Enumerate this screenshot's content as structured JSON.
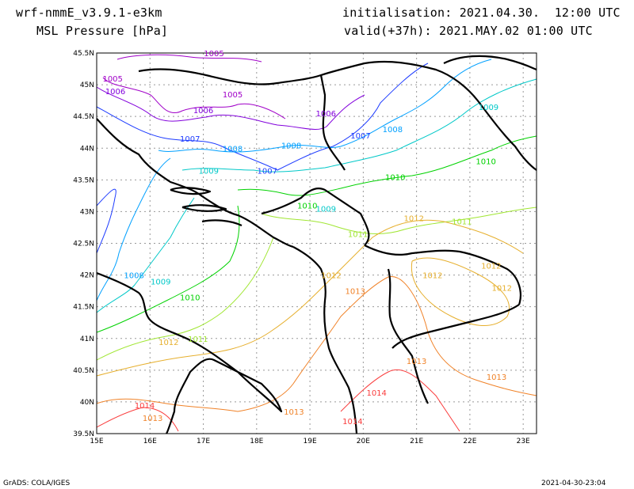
{
  "header": {
    "model": "wrf-nmmE_v3.9.1-e3km",
    "field": "MSL Pressure [hPa]",
    "init": "initialisation: 2021.04.30.  12:00 UTC",
    "valid": "valid(+37h): 2021.MAY.02 01:00 UTC"
  },
  "footer": {
    "left": "GrADS: COLA/IGES",
    "right": "2021-04-30-23:04"
  },
  "axes": {
    "lon_labels": [
      "15E",
      "16E",
      "17E",
      "18E",
      "19E",
      "20E",
      "21E",
      "22E",
      "23E"
    ],
    "lat_labels": [
      "45.5N",
      "45N",
      "44.5N",
      "44N",
      "43.5N",
      "43N",
      "42.5N",
      "42N",
      "41.5N",
      "41N",
      "40.5N",
      "40N",
      "39.5N"
    ]
  },
  "contour_colors": {
    "1005": "#a000c8",
    "1006": "#8200dc",
    "1007": "#1e3cff",
    "1008": "#00a0ff",
    "1009": "#00c8c8",
    "1010": "#00d200",
    "1011": "#a0e632",
    "1012": "#e6af2d",
    "1013": "#f08228",
    "1014": "#fa3c3c"
  },
  "contour_labels": [
    {
      "text": "1005",
      "level": "1005",
      "lon": 17.2,
      "lat": 45.45
    },
    {
      "text": "1005",
      "level": "1005",
      "lon": 15.3,
      "lat": 45.05
    },
    {
      "text": "1006",
      "level": "1006",
      "lon": 15.35,
      "lat": 44.85
    },
    {
      "text": "1005",
      "level": "1005",
      "lon": 17.55,
      "lat": 44.8
    },
    {
      "text": "1006",
      "level": "1006",
      "lon": 17.0,
      "lat": 44.55
    },
    {
      "text": "1006",
      "level": "1006",
      "lon": 19.3,
      "lat": 44.5
    },
    {
      "text": "1007",
      "level": "1007",
      "lon": 16.75,
      "lat": 44.1
    },
    {
      "text": "1008",
      "level": "1008",
      "lon": 17.55,
      "lat": 43.95
    },
    {
      "text": "1008",
      "level": "1008",
      "lon": 18.65,
      "lat": 44.0
    },
    {
      "text": "1007",
      "level": "1007",
      "lon": 19.95,
      "lat": 44.15
    },
    {
      "text": "1008",
      "level": "1008",
      "lon": 20.55,
      "lat": 44.25
    },
    {
      "text": "1009",
      "level": "1009",
      "lon": 22.35,
      "lat": 44.6
    },
    {
      "text": "1009",
      "level": "1009",
      "lon": 17.1,
      "lat": 43.6
    },
    {
      "text": "1007",
      "level": "1007",
      "lon": 18.2,
      "lat": 43.6
    },
    {
      "text": "1010",
      "level": "1010",
      "lon": 22.3,
      "lat": 43.75
    },
    {
      "text": "1010",
      "level": "1010",
      "lon": 20.6,
      "lat": 43.5
    },
    {
      "text": "1010",
      "level": "1010",
      "lon": 18.95,
      "lat": 43.05
    },
    {
      "text": "1009",
      "level": "1009",
      "lon": 19.3,
      "lat": 43.0
    },
    {
      "text": "1011",
      "level": "1011",
      "lon": 19.9,
      "lat": 42.6
    },
    {
      "text": "1012",
      "level": "1012",
      "lon": 20.95,
      "lat": 42.85
    },
    {
      "text": "1011",
      "level": "1011",
      "lon": 21.85,
      "lat": 42.8
    },
    {
      "text": "1012",
      "level": "1012",
      "lon": 22.4,
      "lat": 42.1
    },
    {
      "text": "1008",
      "level": "1008",
      "lon": 15.7,
      "lat": 41.95
    },
    {
      "text": "1009",
      "level": "1009",
      "lon": 16.2,
      "lat": 41.85
    },
    {
      "text": "1010",
      "level": "1010",
      "lon": 16.75,
      "lat": 41.6
    },
    {
      "text": "1012",
      "level": "1012",
      "lon": 19.4,
      "lat": 41.95
    },
    {
      "text": "1013",
      "level": "1013",
      "lon": 19.85,
      "lat": 41.7
    },
    {
      "text": "1012",
      "level": "1012",
      "lon": 21.3,
      "lat": 41.95
    },
    {
      "text": "1012",
      "level": "1012",
      "lon": 22.6,
      "lat": 41.75
    },
    {
      "text": "1011",
      "level": "1011",
      "lon": 16.9,
      "lat": 40.95
    },
    {
      "text": "1012",
      "level": "1012",
      "lon": 16.35,
      "lat": 40.9
    },
    {
      "text": "1013",
      "level": "1013",
      "lon": 21.0,
      "lat": 40.6
    },
    {
      "text": "1013",
      "level": "1013",
      "lon": 22.5,
      "lat": 40.35
    },
    {
      "text": "1014",
      "level": "1014",
      "lon": 20.25,
      "lat": 40.1
    },
    {
      "text": "1014",
      "level": "1014",
      "lon": 15.9,
      "lat": 39.9
    },
    {
      "text": "1013",
      "level": "1013",
      "lon": 16.05,
      "lat": 39.7
    },
    {
      "text": "1013",
      "level": "1013",
      "lon": 18.7,
      "lat": 39.8
    },
    {
      "text": "1014",
      "level": "1014",
      "lon": 19.8,
      "lat": 39.65
    }
  ]
}
